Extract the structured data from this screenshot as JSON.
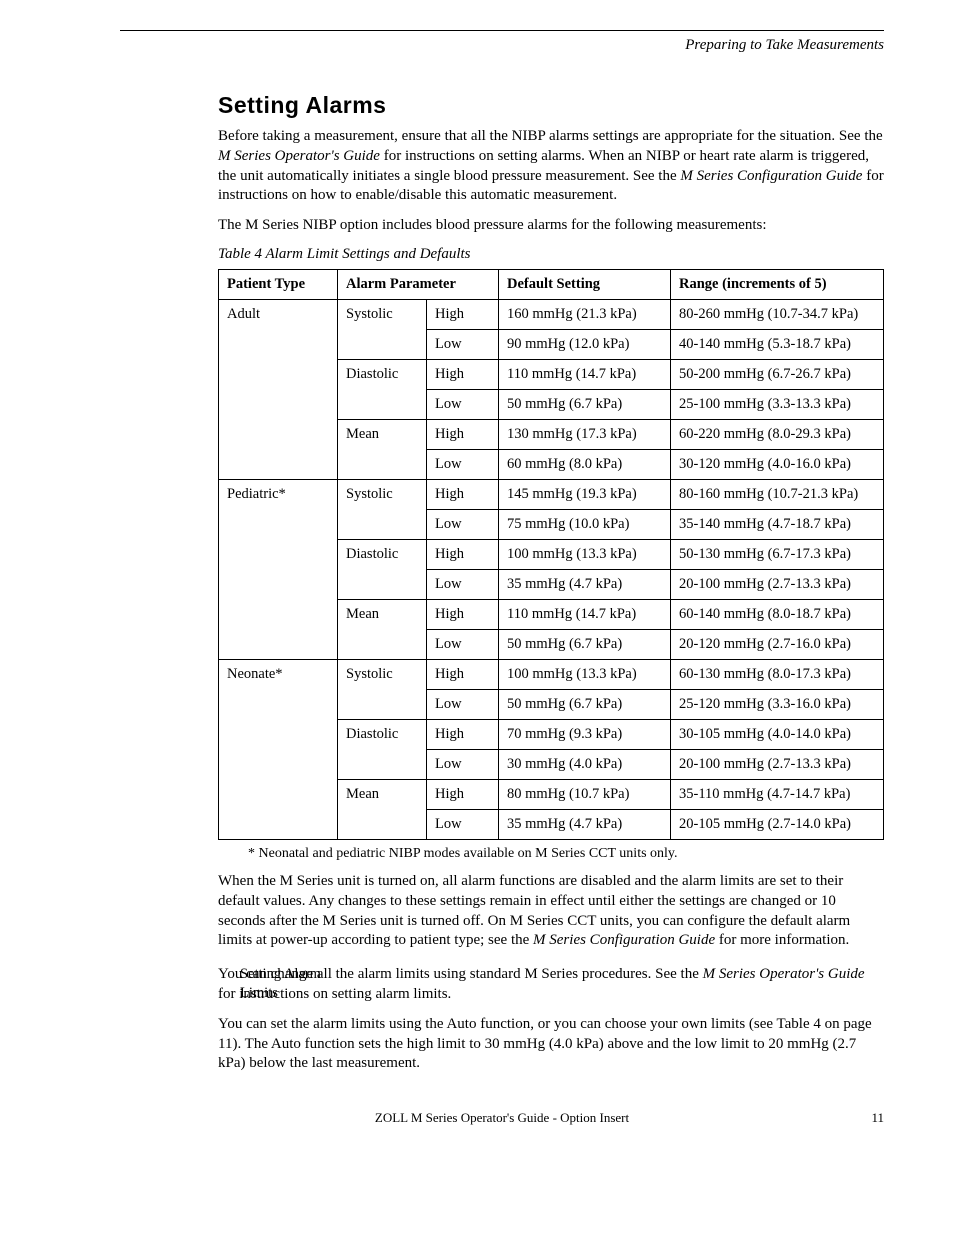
{
  "running_header": "Preparing to Take Measurements",
  "section_title": "Setting Alarms",
  "intro_p1_a": "Before taking a measurement, ensure that all the NIBP alarms settings are appropriate for the situation. See the ",
  "intro_p1_ref1": "M Series Operator's Guide",
  "intro_p1_b": " for instructions on setting alarms. When an NIBP or heart rate alarm is triggered, the unit automatically initiates a single blood pressure measurement. See the ",
  "intro_p1_ref2": "M Series Configuration Guide",
  "intro_p1_c": " for instructions on how to enable/disable this automatic measurement.",
  "intro_p2": "The M Series NIBP option includes blood pressure alarms for the following measurements:",
  "table_caption": "Table 4  Alarm Limit Settings and Defaults",
  "table": {
    "headers": [
      "Patient Type",
      "Alarm Parameter",
      "Default Setting",
      "Range (increments of 5)"
    ],
    "rows": [
      {
        "pt": "Adult",
        "ap": "Systolic",
        "lv": "High",
        "def": "160 mmHg (21.3 kPa)",
        "rng": "80-260 mmHg (10.7-34.7 kPa)"
      },
      {
        "pt": "",
        "ap": "",
        "lv": "Low",
        "def": "90 mmHg (12.0 kPa)",
        "rng": "40-140 mmHg (5.3-18.7 kPa)"
      },
      {
        "pt": "",
        "ap": "Diastolic",
        "lv": "High",
        "def": "110 mmHg (14.7 kPa)",
        "rng": "50-200 mmHg (6.7-26.7 kPa)"
      },
      {
        "pt": "",
        "ap": "",
        "lv": "Low",
        "def": "50 mmHg (6.7 kPa)",
        "rng": "25-100 mmHg (3.3-13.3 kPa)"
      },
      {
        "pt": "",
        "ap": "Mean",
        "lv": "High",
        "def": "130 mmHg (17.3 kPa)",
        "rng": "60-220 mmHg (8.0-29.3 kPa)"
      },
      {
        "pt": "",
        "ap": "",
        "lv": "Low",
        "def": "60 mmHg (8.0 kPa)",
        "rng": "30-120 mmHg (4.0-16.0 kPa)"
      },
      {
        "pt": "Pediatric*",
        "ap": "Systolic",
        "lv": "High",
        "def": "145 mmHg (19.3 kPa)",
        "rng": "80-160 mmHg (10.7-21.3 kPa)"
      },
      {
        "pt": "",
        "ap": "",
        "lv": "Low",
        "def": "75 mmHg (10.0 kPa)",
        "rng": "35-140 mmHg (4.7-18.7 kPa)"
      },
      {
        "pt": "",
        "ap": "Diastolic",
        "lv": "High",
        "def": "100 mmHg (13.3 kPa)",
        "rng": "50-130 mmHg (6.7-17.3 kPa)"
      },
      {
        "pt": "",
        "ap": "",
        "lv": "Low",
        "def": "35 mmHg (4.7 kPa)",
        "rng": "20-100 mmHg (2.7-13.3 kPa)"
      },
      {
        "pt": "",
        "ap": "Mean",
        "lv": "High",
        "def": "110 mmHg (14.7 kPa)",
        "rng": "60-140 mmHg (8.0-18.7 kPa)"
      },
      {
        "pt": "",
        "ap": "",
        "lv": "Low",
        "def": "50 mmHg (6.7 kPa)",
        "rng": "20-120 mmHg (2.7-16.0 kPa)"
      },
      {
        "pt": "Neonate*",
        "ap": "Systolic",
        "lv": "High",
        "def": "100 mmHg (13.3 kPa)",
        "rng": "60-130 mmHg (8.0-17.3 kPa)"
      },
      {
        "pt": "",
        "ap": "",
        "lv": "Low",
        "def": "50 mmHg (6.7 kPa)",
        "rng": "25-120 mmHg (3.3-16.0 kPa)"
      },
      {
        "pt": "",
        "ap": "Diastolic",
        "lv": "High",
        "def": "70 mmHg (9.3 kPa)",
        "rng": "30-105 mmHg (4.0-14.0 kPa)"
      },
      {
        "pt": "",
        "ap": "",
        "lv": "Low",
        "def": "30 mmHg (4.0 kPa)",
        "rng": "20-100 mmHg (2.7-13.3 kPa)"
      },
      {
        "pt": "",
        "ap": "Mean",
        "lv": "High",
        "def": "80 mmHg (10.7 kPa)",
        "rng": "35-110 mmHg (4.7-14.7 kPa)"
      },
      {
        "pt": "",
        "ap": "",
        "lv": "Low",
        "def": "35 mmHg (4.7 kPa)",
        "rng": "20-105 mmHg (2.7-14.0 kPa)"
      }
    ]
  },
  "footnote": "* Neonatal and pediatric NIBP modes available on M Series CCT units only.",
  "after_table_p_a": "When the M Series unit is turned on, all alarm functions are disabled and the alarm limits are set to their default values. Any changes to these settings remain in effect until either the settings are changed or 10 seconds after the M Series unit is turned off. On M Series CCT units, you can configure the default alarm limits at power-up according to patient type; see the ",
  "after_table_p_ref": "M Series Configuration Guide",
  "after_table_p_b": " for more information.",
  "side_label": "Setting Alarm Limits",
  "limits_p1_a": "You can change all the alarm limits using standard M Series procedures. See the ",
  "limits_p1_ref": "M Series Operator's Guide",
  "limits_p1_b": " for instructions on setting alarm limits.",
  "limits_p2": "You can set the alarm limits using the Auto function, or you can choose your own limits (see Table 4 on page 11). The Auto function sets the high limit to 30 mmHg (4.0 kPa) above and the low limit to 20 mmHg (2.7 kPa) below the last measurement.",
  "footer_text": "ZOLL M Series Operator's Guide - Option Insert",
  "page_number": "11"
}
